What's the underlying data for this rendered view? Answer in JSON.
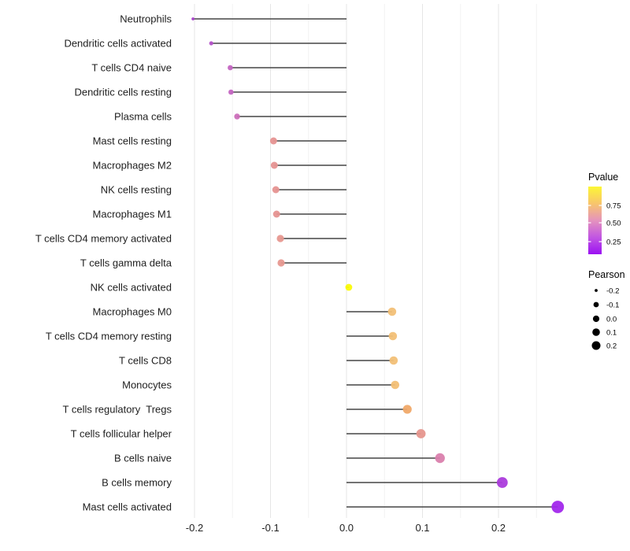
{
  "chart_data": {
    "type": "lollipop",
    "title": "",
    "xlabel": "",
    "ylabel": "",
    "x_tick_labels": [
      "-0.2",
      "-0.1",
      "0.0",
      "0.1",
      "0.2"
    ],
    "x_tick_values": [
      -0.2,
      -0.1,
      0.0,
      0.1,
      0.2
    ],
    "x_minor_values": [
      -0.15,
      -0.05,
      0.05,
      0.15,
      0.25
    ],
    "xlim": [
      -0.228,
      0.298
    ],
    "grid": "vertical-only",
    "rows": [
      {
        "label": "Neutrophils",
        "pearson": -0.202,
        "color": "#A83FCB",
        "radius": 1.9
      },
      {
        "label": "Dendritic cells activated",
        "pearson": -0.178,
        "color": "#B351C9",
        "radius": 2.6
      },
      {
        "label": "T cells CD4 naive",
        "pearson": -0.153,
        "color": "#C465C2",
        "radius": 3.3
      },
      {
        "label": "Dendritic cells resting",
        "pearson": -0.152,
        "color": "#C465C2",
        "radius": 3.3
      },
      {
        "label": "Plasma cells",
        "pearson": -0.144,
        "color": "#CC6FBA",
        "radius": 3.7
      },
      {
        "label": "Mast cells resting",
        "pearson": -0.096,
        "color": "#E69392",
        "radius": 4.5
      },
      {
        "label": "Macrophages M2",
        "pearson": -0.095,
        "color": "#E69392",
        "radius": 4.5
      },
      {
        "label": "NK cells resting",
        "pearson": -0.093,
        "color": "#E69491",
        "radius": 4.5
      },
      {
        "label": "Macrophages M1",
        "pearson": -0.092,
        "color": "#E69491",
        "radius": 4.5
      },
      {
        "label": "T cells CD4 memory activated",
        "pearson": -0.087,
        "color": "#E79890",
        "radius": 4.6
      },
      {
        "label": "T cells gamma delta",
        "pearson": -0.086,
        "color": "#E79890",
        "radius": 4.6
      },
      {
        "label": "NK cells activated",
        "pearson": 0.003,
        "color": "#FBFB08",
        "radius": 4.4
      },
      {
        "label": "Macrophages M0",
        "pearson": 0.06,
        "color": "#F2C077",
        "radius": 5.3
      },
      {
        "label": "T cells CD4 memory resting",
        "pearson": 0.061,
        "color": "#F2C077",
        "radius": 5.3
      },
      {
        "label": "T cells CD8",
        "pearson": 0.062,
        "color": "#F2C077",
        "radius": 5.3
      },
      {
        "label": "Monocytes",
        "pearson": 0.064,
        "color": "#F2BF75",
        "radius": 5.3
      },
      {
        "label": "T cells regulatory  Tregs",
        "pearson": 0.08,
        "color": "#F0A969",
        "radius": 5.6
      },
      {
        "label": "T cells follicular helper",
        "pearson": 0.098,
        "color": "#E6968E",
        "radius": 5.9
      },
      {
        "label": "B cells naive",
        "pearson": 0.123,
        "color": "#DA80AD",
        "radius": 6.2
      },
      {
        "label": "B cells memory",
        "pearson": 0.205,
        "color": "#AB3BDC",
        "radius": 6.9
      },
      {
        "label": "Mast cells activated",
        "pearson": 0.278,
        "color": "#A228EC",
        "radius": 7.9
      }
    ],
    "legend_pvalue": {
      "title": "Pvalue",
      "tick_labels": [
        "0.75",
        "0.50",
        "0.25"
      ],
      "gradient_top_to_bottom": [
        "#FCF735",
        "#F8C56C",
        "#E593BD",
        "#C156E2",
        "#9B11F2"
      ]
    },
    "legend_pearson": {
      "title": "Pearson",
      "entries": [
        {
          "label": "-0.2",
          "radius": 1.9
        },
        {
          "label": "-0.1",
          "radius": 3.4
        },
        {
          "label": "0.0",
          "radius": 4.1
        },
        {
          "label": "0.1",
          "radius": 4.8
        },
        {
          "label": "0.2",
          "radius": 5.5
        }
      ],
      "dot_color": "#000000"
    },
    "style_colors": {
      "stem": "#454545",
      "grid_major": "#E5E5E5",
      "grid_minor": "#F2F2F2",
      "axis_text": "#212121",
      "label_text": "#212121",
      "legend_text": "#000000",
      "background": "#FFFFFF"
    }
  }
}
